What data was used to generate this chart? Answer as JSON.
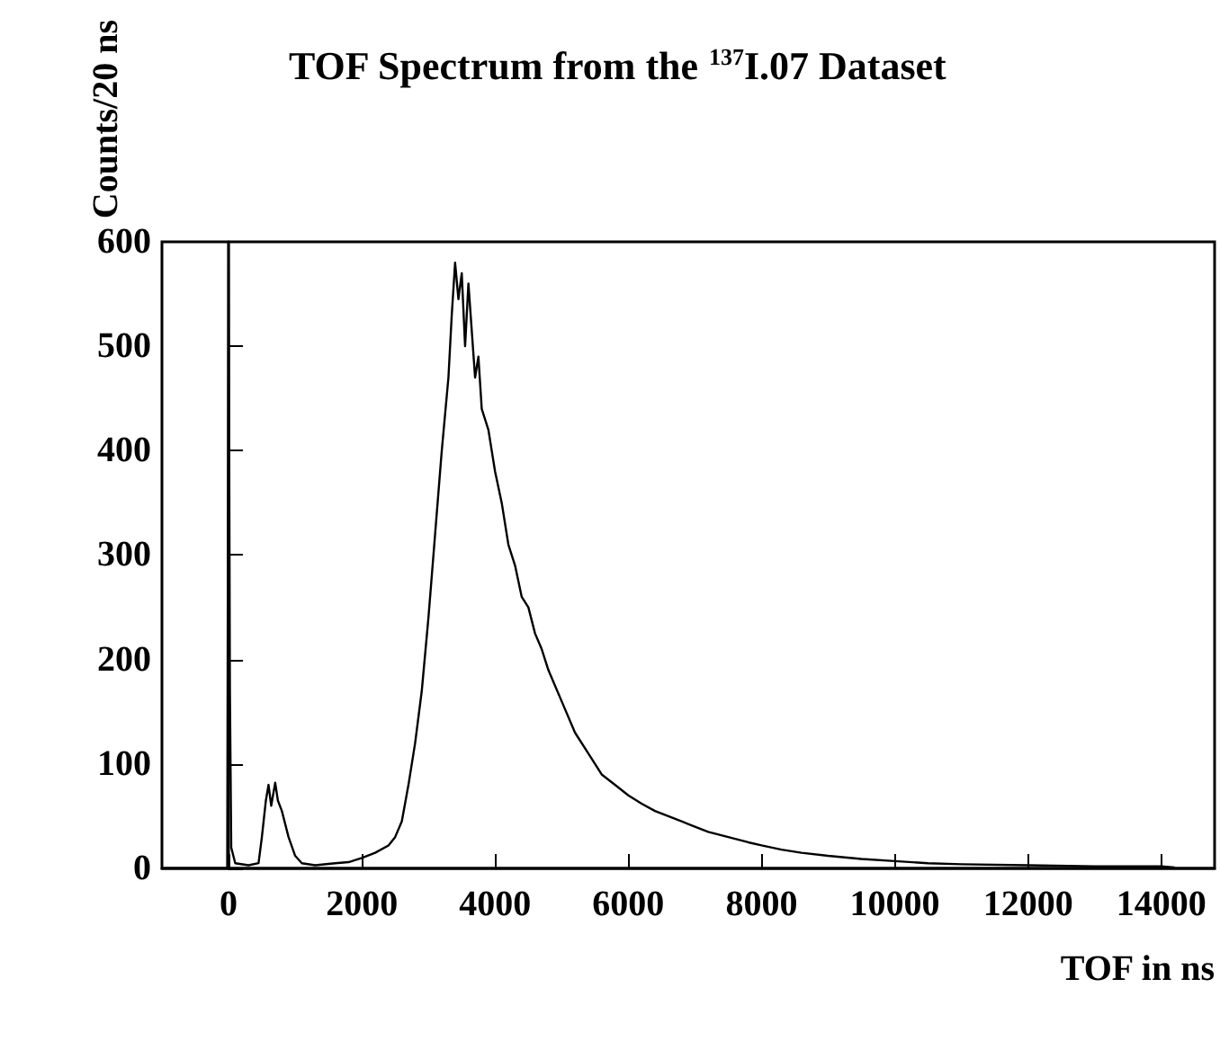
{
  "chart_data": {
    "type": "line",
    "title": "TOF Spectrum from the $^{137}$I.07 Dataset",
    "xlabel": "TOF in ns",
    "ylabel": "Counts/20 ns",
    "x": [
      -1000,
      -40,
      -20,
      0,
      20,
      40,
      100,
      300,
      450,
      500,
      560,
      600,
      640,
      700,
      740,
      800,
      900,
      1000,
      1100,
      1300,
      1600,
      1800,
      2000,
      2200,
      2400,
      2500,
      2600,
      2700,
      2800,
      2900,
      3000,
      3100,
      3200,
      3300,
      3350,
      3400,
      3450,
      3500,
      3550,
      3600,
      3700,
      3750,
      3800,
      3900,
      4000,
      4100,
      4200,
      4300,
      4400,
      4500,
      4600,
      4700,
      4800,
      4900,
      5000,
      5200,
      5400,
      5600,
      5800,
      6000,
      6200,
      6400,
      6600,
      6800,
      7000,
      7200,
      7500,
      7800,
      8000,
      8300,
      8600,
      9000,
      9500,
      10000,
      10500,
      11000,
      12000,
      13000,
      14000,
      14200
    ],
    "series": [
      {
        "color": "#000000",
        "values": [
          0,
          0,
          0,
          600,
          170,
          20,
          5,
          3,
          5,
          30,
          65,
          80,
          60,
          82,
          65,
          55,
          30,
          12,
          5,
          3,
          5,
          6,
          10,
          15,
          22,
          30,
          45,
          80,
          120,
          170,
          240,
          320,
          400,
          470,
          530,
          580,
          545,
          570,
          500,
          560,
          470,
          490,
          440,
          420,
          380,
          350,
          310,
          290,
          260,
          250,
          225,
          210,
          190,
          175,
          160,
          130,
          110,
          90,
          80,
          70,
          62,
          55,
          50,
          45,
          40,
          35,
          30,
          25,
          22,
          18,
          15,
          12,
          9,
          7,
          5,
          4,
          3,
          2,
          2,
          1
        ]
      }
    ],
    "xlim": [
      -1000,
      14800
    ],
    "xticks": [
      0,
      2000,
      4000,
      6000,
      8000,
      10000,
      12000,
      14000
    ],
    "ylim": [
      0,
      600
    ],
    "yticks": [
      0,
      100,
      200,
      300,
      400,
      500,
      600
    ],
    "marker": "none",
    "line_style": "solid"
  }
}
